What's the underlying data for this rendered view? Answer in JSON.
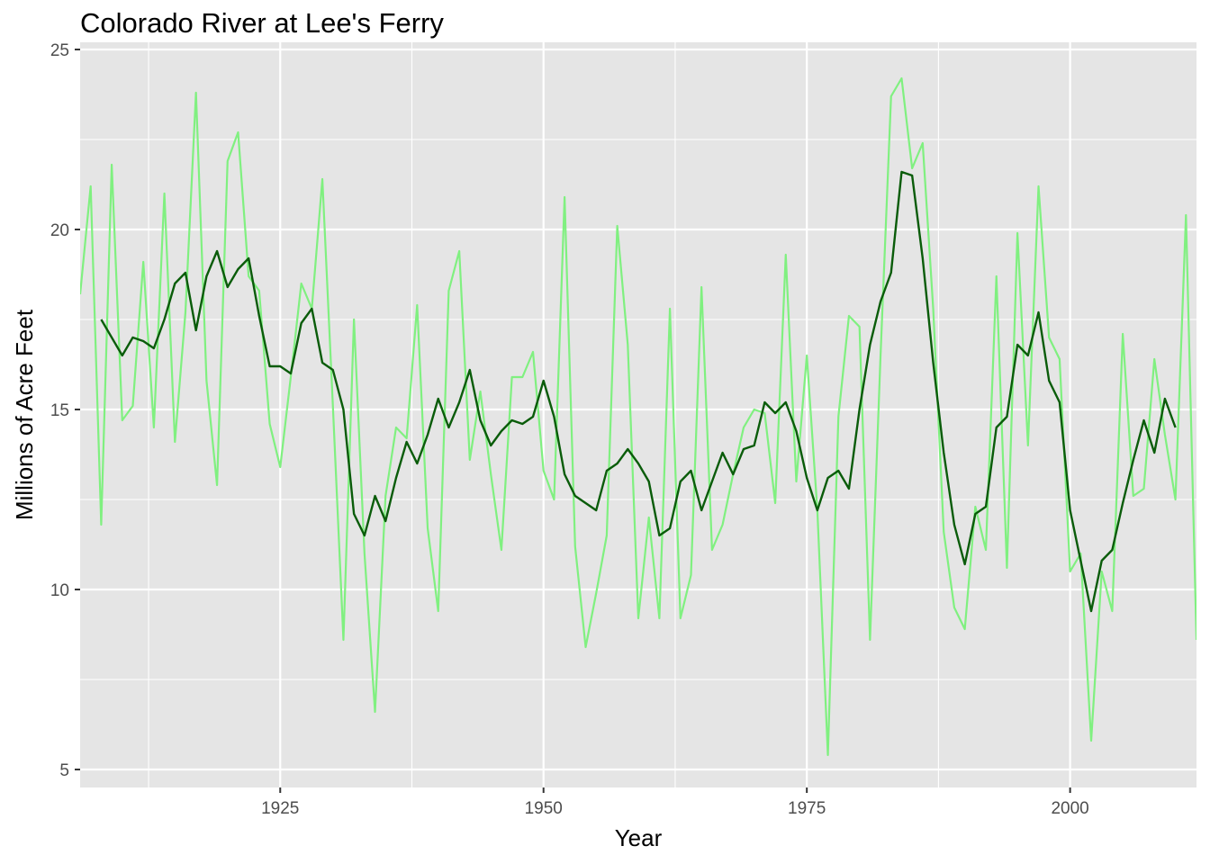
{
  "chart_data": {
    "type": "line",
    "title": "Colorado River at Lee's Ferry",
    "xlabel": "Year",
    "ylabel": "Millions of Acre Feet",
    "xlim": [
      1906,
      2012
    ],
    "ylim": [
      4.5,
      25.2
    ],
    "xticks": [
      1925,
      1950,
      1975,
      2000
    ],
    "yticks": [
      5,
      10,
      15,
      20,
      25
    ],
    "grid": true,
    "colors": {
      "panel": "#e5e5e5",
      "grid": "#ffffff",
      "annual": "#80f080",
      "smoothed": "#0a5c0a"
    },
    "series": [
      {
        "key": "annual",
        "start_year": 1906,
        "values": [
          18.2,
          21.2,
          11.8,
          21.8,
          14.7,
          15.1,
          19.1,
          14.5,
          21.0,
          14.1,
          17.7,
          23.8,
          15.8,
          12.9,
          21.9,
          22.7,
          18.7,
          18.3,
          14.6,
          13.4,
          15.9,
          18.5,
          17.8,
          21.4,
          15.1,
          8.6,
          17.5,
          11.0,
          6.6,
          12.6,
          14.5,
          14.2,
          17.9,
          11.7,
          9.4,
          18.3,
          19.4,
          13.6,
          15.5,
          13.2,
          11.1,
          15.9,
          15.9,
          16.6,
          13.3,
          12.5,
          20.9,
          11.2,
          8.4,
          9.9,
          11.5,
          20.1,
          16.8,
          9.2,
          12.0,
          9.2,
          17.8,
          9.2,
          10.4,
          18.4,
          11.1,
          11.8,
          13.2,
          14.5,
          15.0,
          14.9,
          12.4,
          19.3,
          13.0,
          16.5,
          12.2,
          5.4,
          14.8,
          17.6,
          17.3,
          8.6,
          16.5,
          23.7,
          24.2,
          21.7,
          22.4,
          17.8,
          11.6,
          9.5,
          8.9,
          12.3,
          11.1,
          18.7,
          10.6,
          19.9,
          14.0,
          21.2,
          17.0,
          16.4,
          10.5,
          11.0,
          5.8,
          10.5,
          9.4,
          17.1,
          12.6,
          12.8,
          16.4,
          14.3,
          12.5,
          20.4,
          8.6
        ]
      },
      {
        "key": "smoothed",
        "start_year": 1908,
        "values": [
          17.5,
          17.0,
          16.5,
          17.0,
          16.9,
          16.7,
          17.5,
          18.5,
          18.8,
          17.2,
          18.7,
          19.4,
          18.4,
          18.9,
          19.2,
          17.6,
          16.2,
          16.2,
          16.0,
          17.4,
          17.8,
          16.3,
          16.1,
          15.0,
          12.1,
          11.5,
          12.6,
          11.9,
          13.1,
          14.1,
          13.5,
          14.3,
          15.3,
          14.5,
          15.2,
          16.1,
          14.7,
          14.0,
          14.4,
          14.7,
          14.6,
          14.8,
          15.8,
          14.8,
          13.2,
          12.6,
          12.4,
          12.2,
          13.3,
          13.5,
          13.9,
          13.5,
          13.0,
          11.5,
          11.7,
          13.0,
          13.3,
          12.2,
          13.0,
          13.8,
          13.2,
          13.9,
          14.0,
          15.2,
          14.9,
          15.2,
          14.4,
          13.1,
          12.2,
          13.1,
          13.3,
          12.8,
          15.0,
          16.8,
          18.0,
          18.8,
          21.6,
          21.5,
          19.2,
          16.3,
          13.8,
          11.8,
          10.7,
          12.1,
          12.3,
          14.5,
          14.8,
          16.8,
          16.5,
          17.7,
          15.8,
          15.2,
          12.2,
          10.8,
          9.4,
          10.8,
          11.1,
          12.4,
          13.6,
          14.7,
          13.8,
          15.3,
          14.5
        ]
      }
    ]
  }
}
